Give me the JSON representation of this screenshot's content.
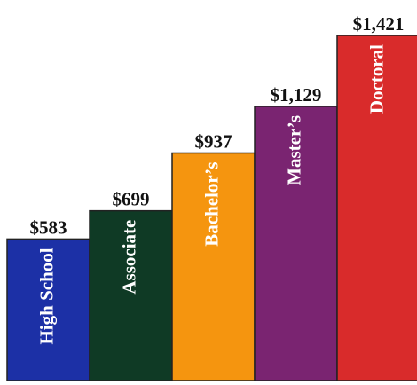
{
  "chart_data": {
    "type": "bar",
    "categories": [
      "High School",
      "Associate",
      "Bachelor’s",
      "Master’s",
      "Doctoral"
    ],
    "values": [
      583,
      699,
      937,
      1129,
      1421
    ],
    "value_labels": [
      "$583",
      "$699",
      "$937",
      "$1,129",
      "$1,421"
    ],
    "colors": [
      "#1c30a6",
      "#0f3a25",
      "#f5950f",
      "#7a2471",
      "#d92b2b"
    ]
  }
}
